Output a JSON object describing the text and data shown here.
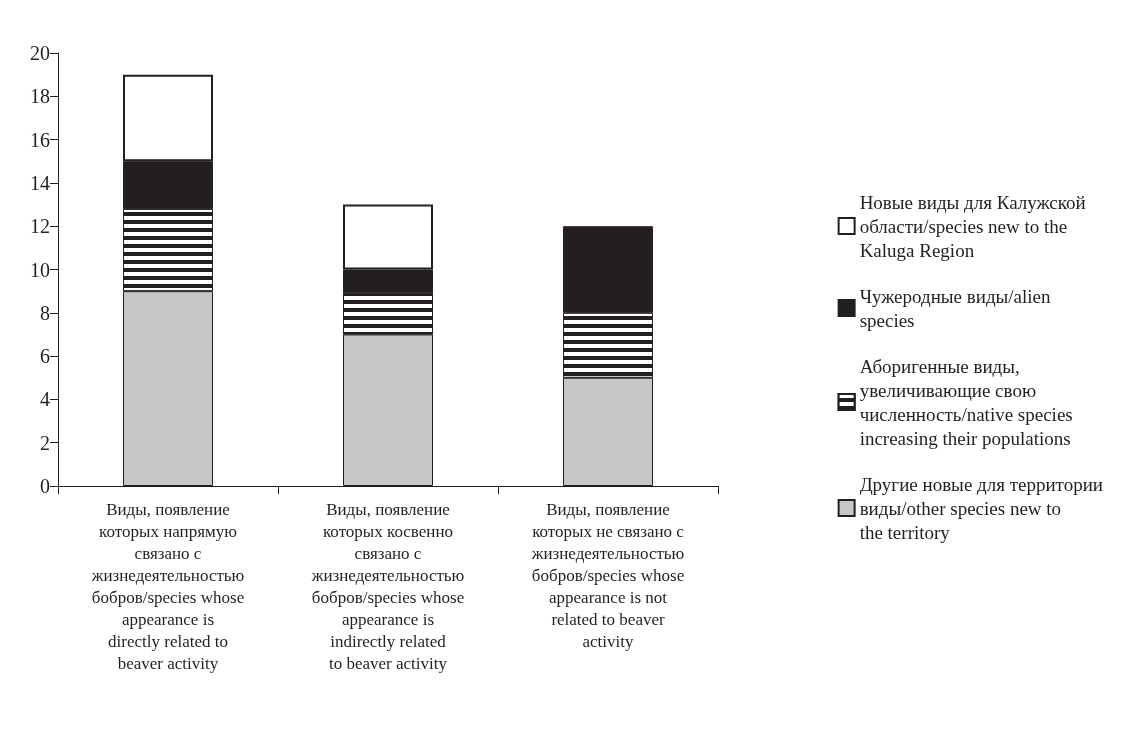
{
  "chart_data": {
    "type": "bar",
    "stacked": true,
    "categories": [
      "Виды, появление которых напрямую связано с жизнедеятельностью бобров/species whose appearance is directly related to beaver activity",
      "Виды, появление которых косвенно связано с жизнедеятельностью бобров/species whose appearance is indirectly related to beaver activity",
      "Виды, появление которых не связано с жизнедеятельностью бобров/species whose appearance is not related to beaver activity"
    ],
    "series": [
      {
        "name": "Другие новые для территории виды/other species new to the territory",
        "color": "#c6c7c9",
        "values": [
          9,
          7,
          5
        ]
      },
      {
        "name": "Аборигенные виды, увеличивающие свою численность/native species increasing their populations",
        "color": "#231f20",
        "values": [
          3.8,
          1.9,
          3
        ]
      },
      {
        "name": "Чужеродные виды/alien species",
        "color": "#231f20",
        "values": [
          2.2,
          1.1,
          4
        ]
      },
      {
        "name": "Новые виды для Калужской области/species new to the Kaluga Region",
        "color": "#ffffff",
        "values": [
          4,
          3,
          null
        ]
      }
    ],
    "ylim": [
      0,
      20
    ],
    "yticks": [
      0,
      2,
      4,
      6,
      8,
      10,
      12,
      14,
      16,
      18,
      20
    ],
    "grid": false,
    "legend": "right"
  }
}
